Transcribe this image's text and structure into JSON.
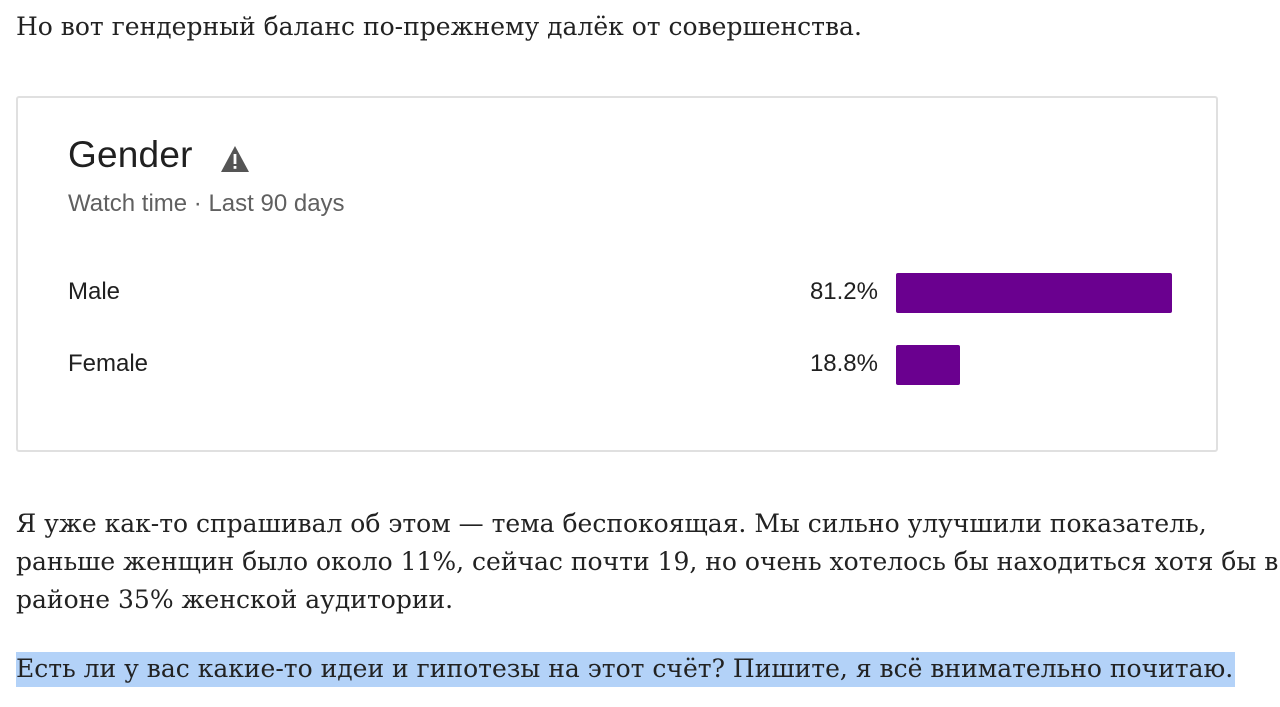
{
  "article": {
    "intro": "Но вот гендерный баланс по-прежнему далёк от совершенства.",
    "body_lines": [
      "Я уже как-то спрашивал об этом — тема беспокоящая. Мы сильно улучшили показатель,",
      "раньше женщин было около 11%, сейчас почти 19, но очень хотелось бы находиться хотя бы в",
      "районе 35% женской аудитории."
    ],
    "question": "Есть ли у вас какие-то идеи и гипотезы на этот счёт? Пишите, я всё внимательно почитаю."
  },
  "card": {
    "title": "Gender",
    "title_icon": "warning-icon",
    "subtitle": "Watch time · Last 90 days",
    "bar_color": "#6a008f"
  },
  "chart_data": {
    "type": "bar",
    "orientation": "horizontal",
    "categories": [
      "Male",
      "Female"
    ],
    "values": [
      81.2,
      18.8
    ],
    "value_labels": [
      "81.2%",
      "18.8%"
    ],
    "title": "Gender",
    "subtitle": "Watch time · Last 90 days",
    "unit": "%",
    "grid": false,
    "legend": "none"
  }
}
